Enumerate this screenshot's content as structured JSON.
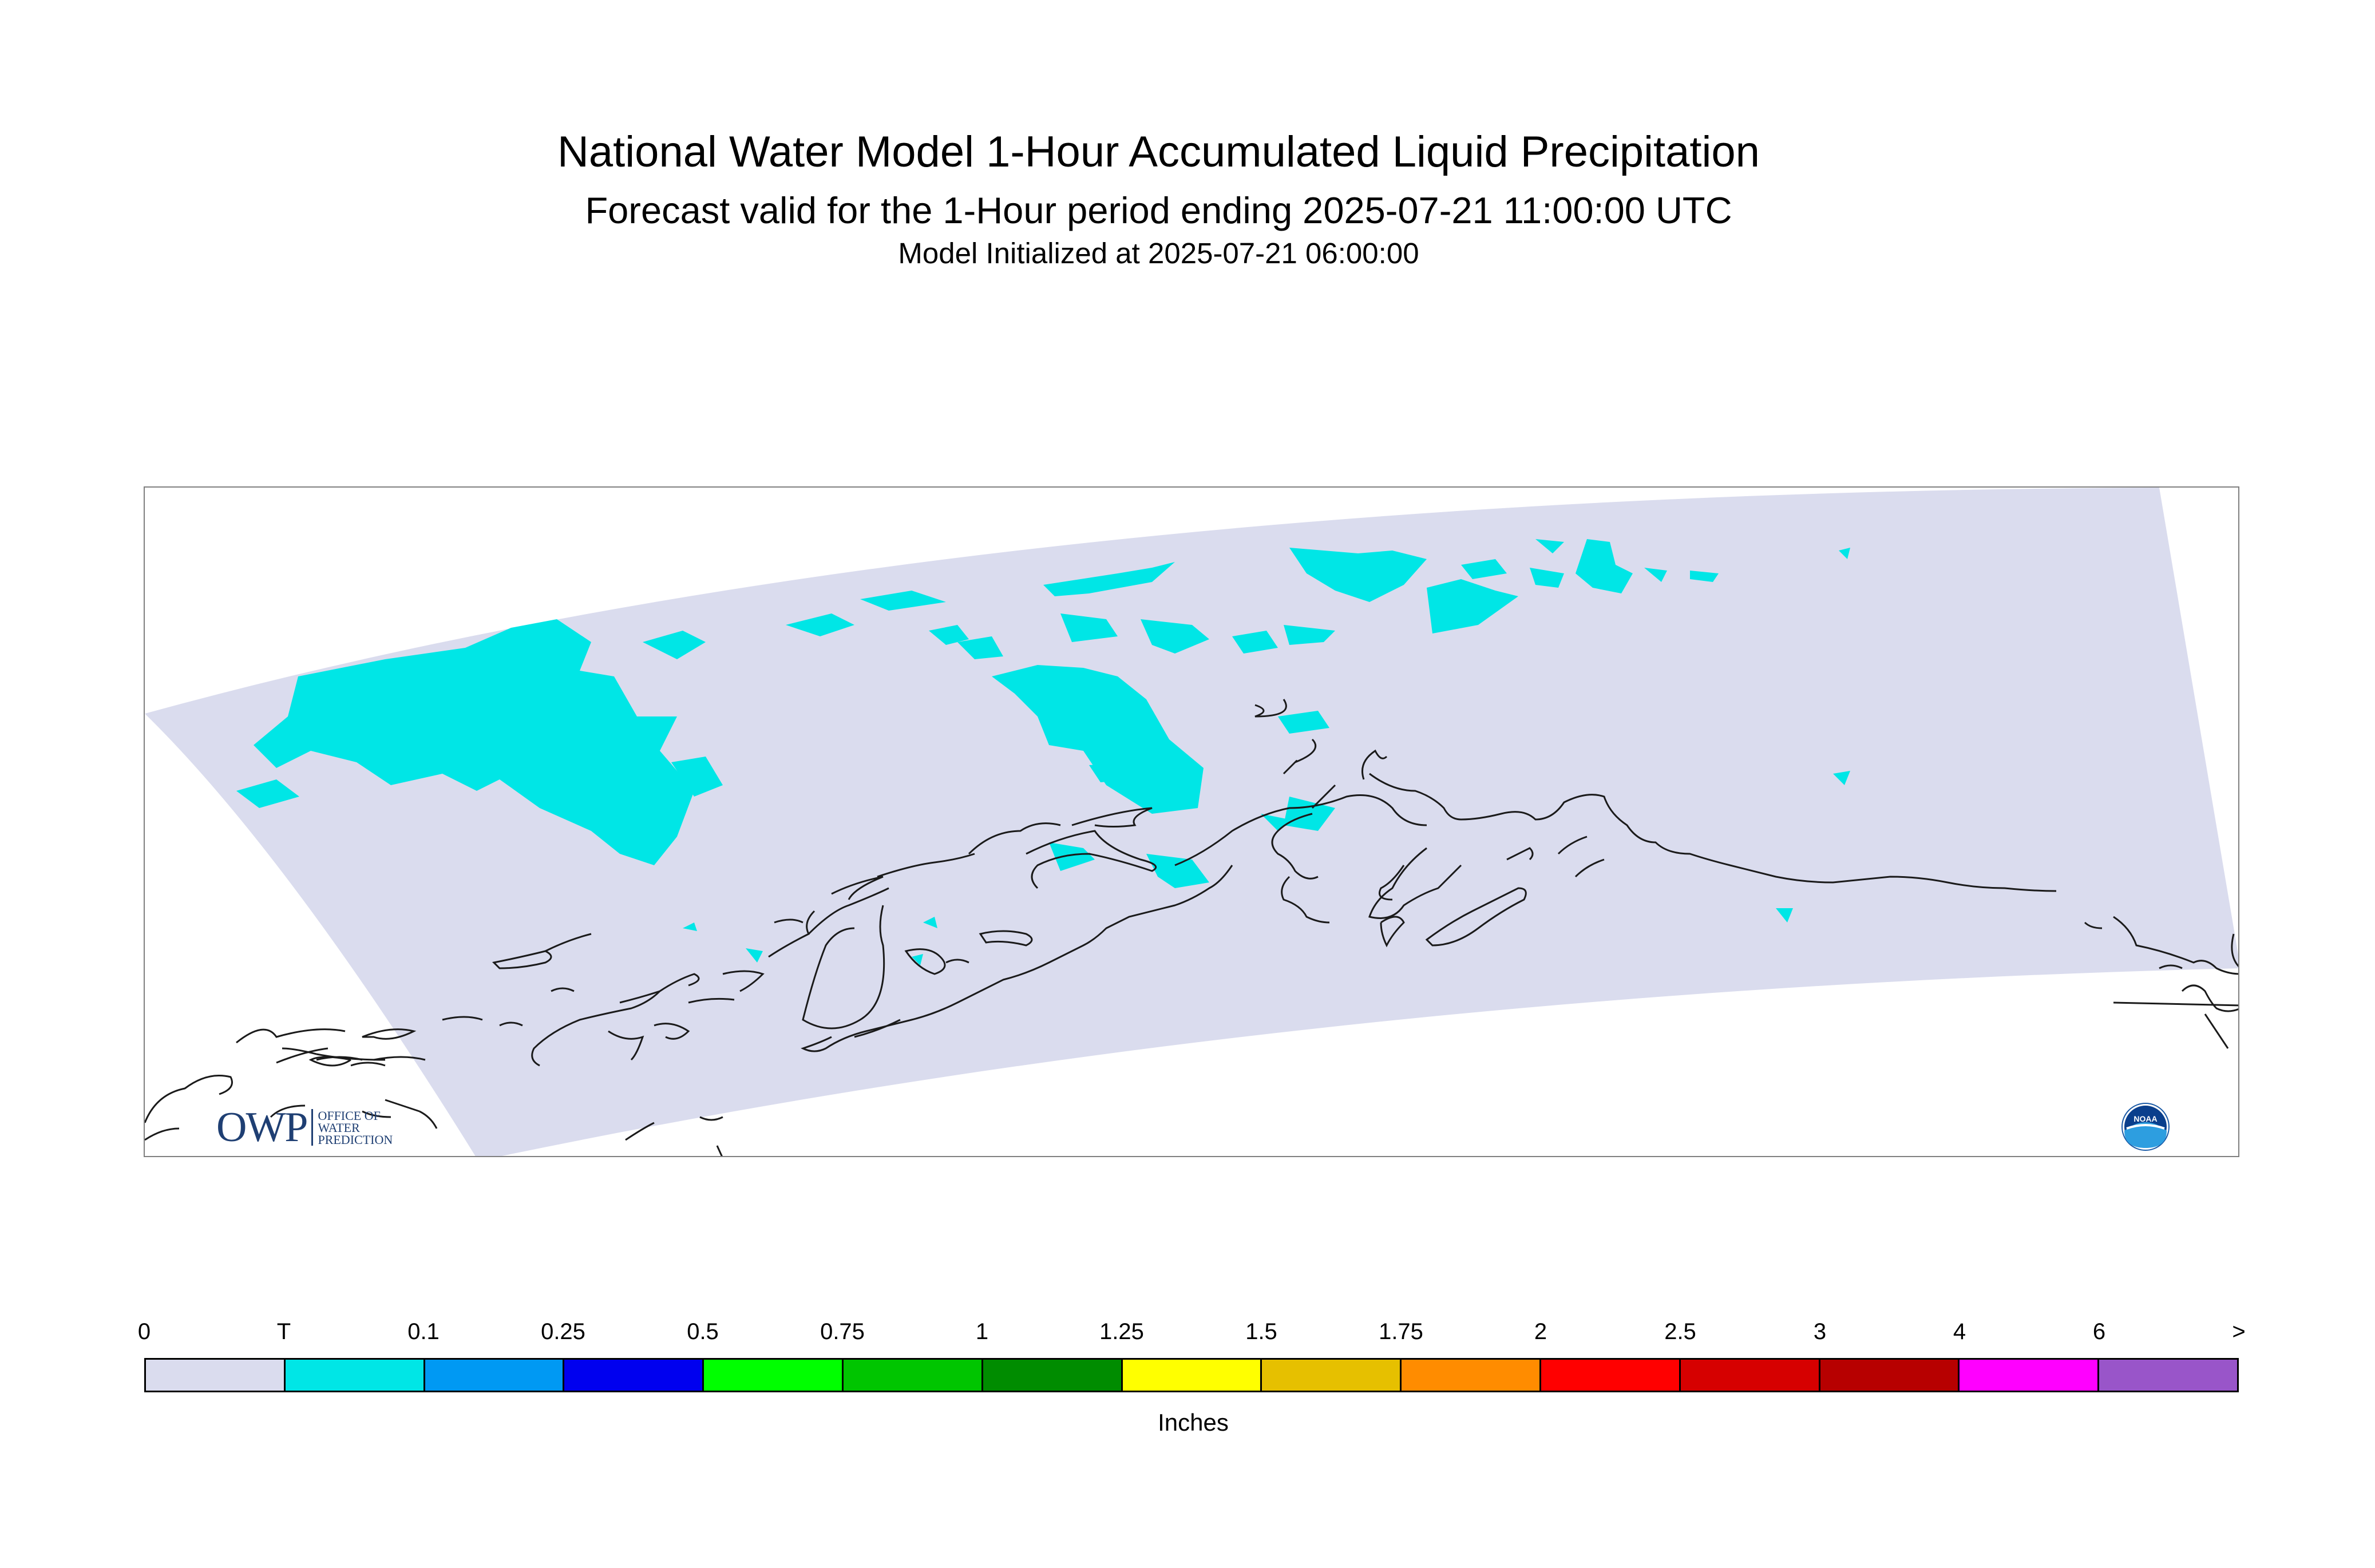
{
  "title": "National Water Model 1-Hour Accumulated Liquid Precipitation",
  "subtitle": "Forecast valid for the 1-Hour period ending 2025-07-21 11:00:00 UTC",
  "init_line": "Model Initialized at 2025-07-21 06:00:00",
  "map": {
    "region": "Alaska",
    "colors": {
      "domain": "#dadcee",
      "precip_trace": "#00e6e6",
      "coast": "#1a1a1a",
      "border": "#7f7f7f"
    },
    "precip_present": "T"
  },
  "logos": {
    "owp_big": "OWP",
    "owp_small": [
      "OFFICE OF",
      "WATER",
      "PREDICTION"
    ],
    "noaa": "NOAA"
  },
  "legend": {
    "units": "Inches",
    "ticks": [
      "0",
      "T",
      "0.1",
      "0.25",
      "0.5",
      "0.75",
      "1",
      "1.25",
      "1.5",
      "1.75",
      "2",
      "2.5",
      "3",
      "4",
      "6",
      ">"
    ],
    "colors": [
      "#dadcee",
      "#00e6e6",
      "#0099f3",
      "#0000ef",
      "#00ff00",
      "#00c500",
      "#008c00",
      "#ffff00",
      "#e6c000",
      "#ff8c00",
      "#ff0000",
      "#d60000",
      "#b70000",
      "#ff00ff",
      "#9955c9"
    ]
  }
}
